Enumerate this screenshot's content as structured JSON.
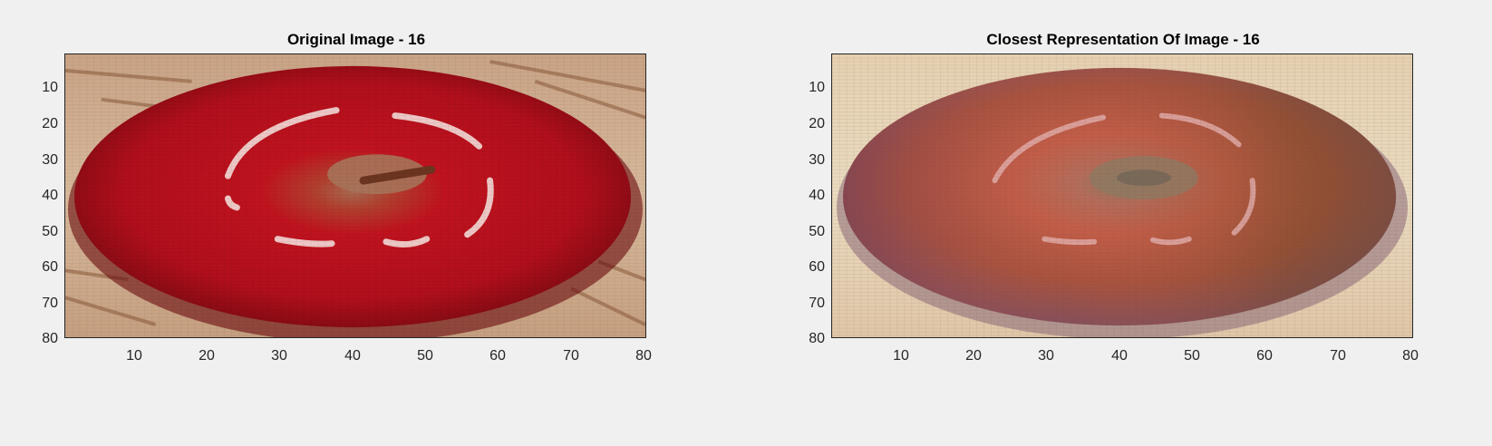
{
  "figure": {
    "background": "#f0f0f0",
    "panels": [
      {
        "title": "Original Image - 16",
        "xticks": [
          "10",
          "20",
          "30",
          "40",
          "50",
          "60",
          "70",
          "80"
        ],
        "yticks": [
          "10",
          "20",
          "30",
          "40",
          "50",
          "60",
          "70",
          "80"
        ],
        "palette": {
          "background": "#d2b094",
          "fruit_outer": "#8e0c14",
          "fruit_mid": "#bb101e",
          "fruit_center": "#a86a52",
          "stem": "#6c3520",
          "highlight": "#f2d8d4"
        }
      },
      {
        "title": "Closest Representation Of Image - 16",
        "xticks": [
          "10",
          "20",
          "30",
          "40",
          "50",
          "60",
          "70",
          "80"
        ],
        "yticks": [
          "10",
          "20",
          "30",
          "40",
          "50",
          "60",
          "70",
          "80"
        ],
        "palette": {
          "background": "#e6d5b6",
          "fruit_outer": "#8e4a4a",
          "fruit_mid": "#b65c4c",
          "fruit_center": "#8e7a62",
          "stem": "#7a6a58",
          "highlight": "#e8b8b4"
        }
      }
    ]
  }
}
